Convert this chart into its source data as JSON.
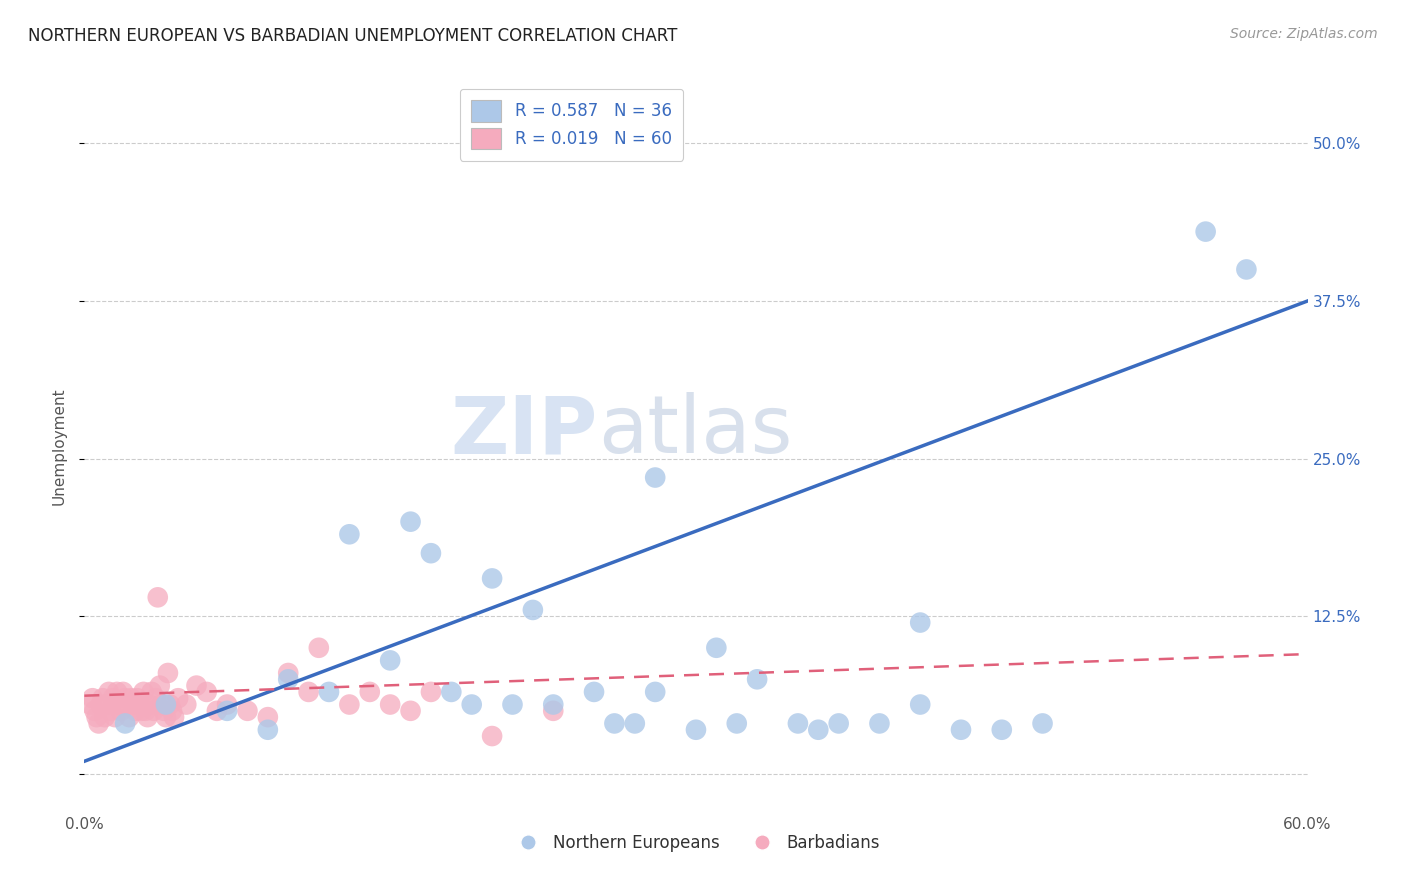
{
  "title": "NORTHERN EUROPEAN VS BARBADIAN UNEMPLOYMENT CORRELATION CHART",
  "source": "Source: ZipAtlas.com",
  "ylabel": "Unemployment",
  "xlim": [
    0.0,
    0.6
  ],
  "ylim": [
    -0.03,
    0.55
  ],
  "yticks": [
    0.0,
    0.125,
    0.25,
    0.375,
    0.5
  ],
  "ytick_labels": [
    "",
    "12.5%",
    "25.0%",
    "37.5%",
    "50.0%"
  ],
  "xticks": [
    0.0,
    0.1,
    0.2,
    0.3,
    0.4,
    0.5,
    0.6
  ],
  "xtick_labels": [
    "0.0%",
    "",
    "",
    "",
    "",
    "",
    "60.0%"
  ],
  "blue_R": 0.587,
  "blue_N": 36,
  "pink_R": 0.019,
  "pink_N": 60,
  "blue_color": "#adc8e8",
  "pink_color": "#f5abbe",
  "blue_line_color": "#3a6bbf",
  "pink_line_color": "#e0607a",
  "legend_label_blue": "Northern Europeans",
  "legend_label_pink": "Barbadians",
  "watermark_zip": "ZIP",
  "watermark_atlas": "atlas",
  "blue_line_x": [
    0.0,
    0.6
  ],
  "blue_line_y": [
    0.01,
    0.375
  ],
  "pink_line_x": [
    0.0,
    0.6
  ],
  "pink_line_y": [
    0.062,
    0.095
  ],
  "blue_scatter_x": [
    0.02,
    0.04,
    0.07,
    0.09,
    0.1,
    0.12,
    0.13,
    0.15,
    0.16,
    0.17,
    0.18,
    0.19,
    0.2,
    0.21,
    0.22,
    0.23,
    0.25,
    0.26,
    0.27,
    0.28,
    0.3,
    0.31,
    0.32,
    0.33,
    0.35,
    0.36,
    0.37,
    0.39,
    0.41,
    0.43,
    0.45,
    0.47,
    0.28,
    0.41,
    0.55,
    0.57
  ],
  "blue_scatter_y": [
    0.04,
    0.055,
    0.05,
    0.035,
    0.075,
    0.065,
    0.19,
    0.09,
    0.2,
    0.175,
    0.065,
    0.055,
    0.155,
    0.055,
    0.13,
    0.055,
    0.065,
    0.04,
    0.04,
    0.065,
    0.035,
    0.1,
    0.04,
    0.075,
    0.04,
    0.035,
    0.04,
    0.04,
    0.055,
    0.035,
    0.035,
    0.04,
    0.235,
    0.12,
    0.43,
    0.4
  ],
  "pink_scatter_x": [
    0.003,
    0.004,
    0.005,
    0.006,
    0.007,
    0.008,
    0.009,
    0.01,
    0.011,
    0.012,
    0.013,
    0.014,
    0.015,
    0.016,
    0.017,
    0.018,
    0.019,
    0.02,
    0.021,
    0.022,
    0.023,
    0.024,
    0.025,
    0.026,
    0.027,
    0.028,
    0.029,
    0.03,
    0.031,
    0.032,
    0.033,
    0.034,
    0.035,
    0.036,
    0.037,
    0.038,
    0.039,
    0.04,
    0.041,
    0.042,
    0.043,
    0.044,
    0.046,
    0.05,
    0.055,
    0.06,
    0.065,
    0.07,
    0.08,
    0.09,
    0.1,
    0.11,
    0.115,
    0.13,
    0.14,
    0.15,
    0.16,
    0.17,
    0.2,
    0.23
  ],
  "pink_scatter_y": [
    0.055,
    0.06,
    0.05,
    0.045,
    0.04,
    0.055,
    0.06,
    0.045,
    0.055,
    0.065,
    0.05,
    0.06,
    0.045,
    0.065,
    0.055,
    0.05,
    0.065,
    0.06,
    0.055,
    0.045,
    0.06,
    0.055,
    0.05,
    0.06,
    0.055,
    0.05,
    0.065,
    0.05,
    0.045,
    0.055,
    0.065,
    0.05,
    0.06,
    0.14,
    0.07,
    0.055,
    0.05,
    0.045,
    0.08,
    0.055,
    0.05,
    0.045,
    0.06,
    0.055,
    0.07,
    0.065,
    0.05,
    0.055,
    0.05,
    0.045,
    0.08,
    0.065,
    0.1,
    0.055,
    0.065,
    0.055,
    0.05,
    0.065,
    0.03,
    0.05
  ]
}
